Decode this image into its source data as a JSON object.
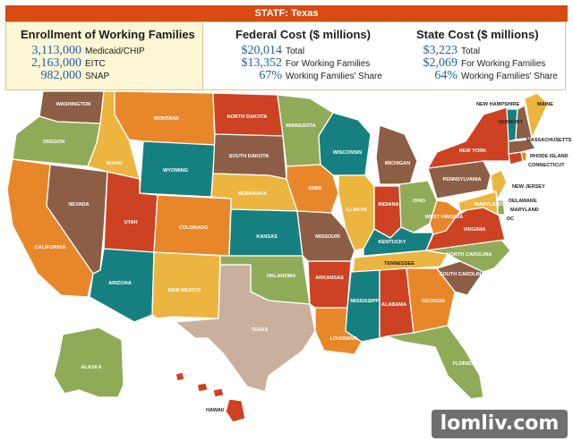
{
  "header": {
    "title": "STATF: Texas"
  },
  "enrollment": {
    "title": "Enrollment of Working Families",
    "rows": [
      {
        "value": "3,113,000",
        "label": "Medicaid/CHIP"
      },
      {
        "value": "2,163,000",
        "label": "EITC"
      },
      {
        "value": "982,000",
        "label": "SNAP"
      }
    ]
  },
  "federal": {
    "title": "Federal Cost ($ millions)",
    "rows": [
      {
        "value": "$20,014",
        "label": "Total"
      },
      {
        "value": "$13,352",
        "label": "For Working Families"
      },
      {
        "value": "67%",
        "label": "Working Families' Share"
      }
    ]
  },
  "state": {
    "title": "State Cost ($ millions)",
    "rows": [
      {
        "value": "$3,223",
        "label": "Total"
      },
      {
        "value": "$2,069",
        "label": "For Working Families"
      },
      {
        "value": "64%",
        "label": "Working Families' Share"
      }
    ]
  },
  "colors": {
    "orange": "#e8872a",
    "teal": "#168080",
    "red": "#cc4222",
    "olive": "#8fab58",
    "gold": "#ecb540",
    "brown": "#8c5e45",
    "texas": "#c9b09d"
  },
  "map": {
    "states": {
      "washington": "WASHINGTON",
      "oregon": "OREGON",
      "california": "CALIFORNIA",
      "nevada": "NEVADA",
      "idaho": "IDAHO",
      "montana": "MONTANA",
      "wyoming": "WYOMING",
      "utah": "UTAH",
      "arizona": "ARIZONA",
      "colorado": "COLORADO",
      "new_mexico": "NEW MEXICO",
      "north_dakota": "NORTH DAKOTA",
      "south_dakota": "SOUTH DAKOTA",
      "nebraska": "NEBRASKA",
      "kansas": "KANSAS",
      "oklahoma": "OKLAHOMA",
      "texas": "TEXAS",
      "minnesota": "MINNESOTA",
      "iowa": "IOWA",
      "missouri": "MISSOURI",
      "arkansas": "ARKANSAS",
      "louisiana": "LOUISIANA",
      "wisconsin": "WISCONSIN",
      "illinois": "ILLINOIS",
      "michigan": "MICHIGAN",
      "indiana": "INDIANA",
      "ohio": "OHIO",
      "kentucky": "KENTUCKY",
      "tennessee": "TENNESSEE",
      "mississippi": "MISSISSIPPI",
      "alabama": "ALABAMA",
      "georgia": "GEORGIA",
      "florida": "FLORIDA",
      "south_carolina": "SOUTH CAROLINA",
      "north_carolina": "NORTH CAROLINA",
      "virginia": "VIRGINIA",
      "west_virginia": "WEST VIRGINIA",
      "pennsylvania": "PENNSYLVANIA",
      "new_york": "NEW YORK",
      "new_jersey": "NEW JERSEY",
      "delaware": "DELAWARE",
      "maryland": "MARYLAND",
      "dc": "DC",
      "connecticut": "CONNECTICUT",
      "rhode_island": "RHODE ISLAND",
      "massachusetts": "MASSACHUSETTS",
      "vermont": "VERMONT",
      "new_hampshire": "NEW HAMPSHIRE",
      "maine": "MAINE",
      "alaska": "ALASKA",
      "hawaii": "HAWAII"
    }
  },
  "watermark": "lomliv.com"
}
